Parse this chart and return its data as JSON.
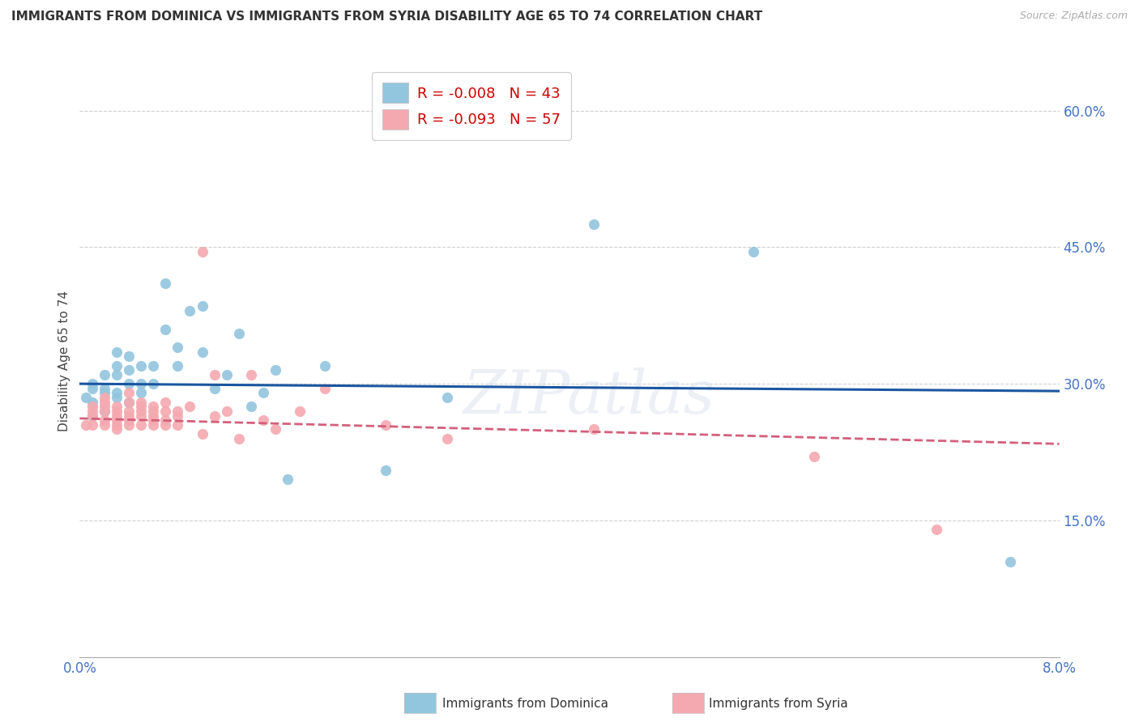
{
  "title": "IMMIGRANTS FROM DOMINICA VS IMMIGRANTS FROM SYRIA DISABILITY AGE 65 TO 74 CORRELATION CHART",
  "source": "Source: ZipAtlas.com",
  "ylabel": "Disability Age 65 to 74",
  "y_ticks": [
    0.0,
    0.15,
    0.3,
    0.45,
    0.6
  ],
  "y_tick_labels": [
    "",
    "15.0%",
    "30.0%",
    "45.0%",
    "60.0%"
  ],
  "x_range": [
    0.0,
    0.08
  ],
  "y_range": [
    0.0,
    0.65
  ],
  "legend_r1": "-0.008",
  "legend_n1": "43",
  "legend_r2": "-0.093",
  "legend_n2": "57",
  "color_dominica": "#92c5de",
  "color_syria": "#f4a9b0",
  "color_dominica_line": "#1a56a0",
  "color_syria_line": "#d45f7a",
  "watermark": "ZIPatlas",
  "dominica_x": [
    0.0005,
    0.001,
    0.001,
    0.001,
    0.001,
    0.002,
    0.002,
    0.002,
    0.002,
    0.003,
    0.003,
    0.003,
    0.003,
    0.003,
    0.004,
    0.004,
    0.004,
    0.004,
    0.005,
    0.005,
    0.005,
    0.006,
    0.006,
    0.007,
    0.007,
    0.008,
    0.008,
    0.009,
    0.01,
    0.01,
    0.011,
    0.012,
    0.013,
    0.014,
    0.015,
    0.016,
    0.017,
    0.02,
    0.025,
    0.03,
    0.042,
    0.055,
    0.076
  ],
  "dominica_y": [
    0.285,
    0.295,
    0.3,
    0.265,
    0.28,
    0.295,
    0.27,
    0.29,
    0.31,
    0.285,
    0.29,
    0.31,
    0.32,
    0.335,
    0.28,
    0.3,
    0.315,
    0.33,
    0.3,
    0.32,
    0.29,
    0.32,
    0.3,
    0.36,
    0.41,
    0.34,
    0.32,
    0.38,
    0.335,
    0.385,
    0.295,
    0.31,
    0.355,
    0.275,
    0.29,
    0.315,
    0.195,
    0.32,
    0.205,
    0.285,
    0.475,
    0.445,
    0.105
  ],
  "syria_x": [
    0.0005,
    0.001,
    0.001,
    0.001,
    0.001,
    0.002,
    0.002,
    0.002,
    0.002,
    0.002,
    0.002,
    0.003,
    0.003,
    0.003,
    0.003,
    0.003,
    0.003,
    0.004,
    0.004,
    0.004,
    0.004,
    0.004,
    0.004,
    0.005,
    0.005,
    0.005,
    0.005,
    0.005,
    0.006,
    0.006,
    0.006,
    0.006,
    0.006,
    0.007,
    0.007,
    0.007,
    0.007,
    0.008,
    0.008,
    0.008,
    0.009,
    0.01,
    0.01,
    0.011,
    0.011,
    0.012,
    0.013,
    0.014,
    0.015,
    0.016,
    0.018,
    0.02,
    0.025,
    0.03,
    0.042,
    0.06,
    0.07
  ],
  "syria_y": [
    0.255,
    0.265,
    0.27,
    0.275,
    0.255,
    0.255,
    0.26,
    0.27,
    0.275,
    0.28,
    0.285,
    0.25,
    0.255,
    0.26,
    0.265,
    0.27,
    0.275,
    0.255,
    0.26,
    0.265,
    0.27,
    0.28,
    0.29,
    0.255,
    0.265,
    0.27,
    0.275,
    0.28,
    0.255,
    0.26,
    0.265,
    0.27,
    0.275,
    0.255,
    0.26,
    0.27,
    0.28,
    0.255,
    0.265,
    0.27,
    0.275,
    0.245,
    0.445,
    0.31,
    0.265,
    0.27,
    0.24,
    0.31,
    0.26,
    0.25,
    0.27,
    0.295,
    0.255,
    0.24,
    0.25,
    0.22,
    0.14
  ]
}
